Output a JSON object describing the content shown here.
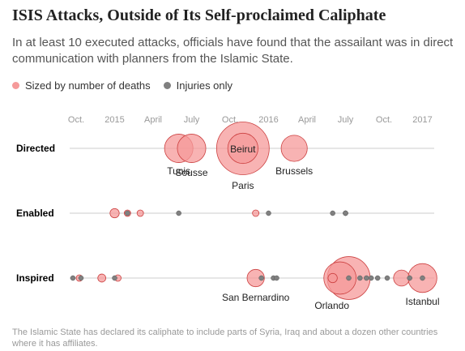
{
  "title": "ISIS Attacks, Outside of Its Self-proclaimed Caliphate",
  "subtitle": "In at least 10 executed attacks, officials have found that the assailant was in direct communication with planners from the Islamic State.",
  "legend": {
    "deaths_label": "Sized by number of deaths",
    "injuries_label": "Injuries only"
  },
  "source": "The Islamic State has declared its caliphate to include parts of Syria, Iraq and about a dozen other countries where it has affiliates.",
  "colors": {
    "deaths_fill": "#f59a9a",
    "deaths_inner": "#f06060",
    "injuries": "#808080",
    "axis_line": "#cccccc"
  },
  "chart_data": {
    "type": "scatter",
    "x_axis": {
      "type": "time",
      "ticks": [
        {
          "date": "2014-10",
          "label": "Oct."
        },
        {
          "date": "2015-01",
          "label": "2015"
        },
        {
          "date": "2015-04",
          "label": "April"
        },
        {
          "date": "2015-07",
          "label": "July"
        },
        {
          "date": "2015-10",
          "label": "Oct."
        },
        {
          "date": "2016-01",
          "label": "2016"
        },
        {
          "date": "2016-04",
          "label": "April"
        },
        {
          "date": "2016-07",
          "label": "July"
        },
        {
          "date": "2016-10",
          "label": "Oct."
        },
        {
          "date": "2017-01",
          "label": "2017"
        }
      ]
    },
    "rows": [
      {
        "name": "Directed",
        "points": [
          {
            "date": "2015-06",
            "kind": "deaths",
            "deaths": 38,
            "label": "Tunis"
          },
          {
            "date": "2015-07",
            "kind": "deaths",
            "deaths": 38,
            "label": "Sousse"
          },
          {
            "date": "2015-11",
            "kind": "deaths",
            "deaths": 130,
            "label": "Paris"
          },
          {
            "date": "2015-11",
            "kind": "deaths",
            "deaths": 43,
            "label": "Beirut"
          },
          {
            "date": "2016-03",
            "kind": "deaths",
            "deaths": 32,
            "label": "Brussels"
          }
        ]
      },
      {
        "name": "Enabled",
        "points": [
          {
            "date": "2015-01",
            "kind": "deaths",
            "deaths": 4
          },
          {
            "date": "2015-02",
            "kind": "deaths",
            "deaths": 1
          },
          {
            "date": "2015-02",
            "kind": "injuries"
          },
          {
            "date": "2015-03",
            "kind": "deaths",
            "deaths": 1
          },
          {
            "date": "2015-06",
            "kind": "injuries"
          },
          {
            "date": "2015-12",
            "kind": "deaths",
            "deaths": 2
          },
          {
            "date": "2016-01",
            "kind": "injuries"
          },
          {
            "date": "2016-06",
            "kind": "injuries"
          },
          {
            "date": "2016-07",
            "kind": "injuries"
          },
          {
            "date": "2016-07",
            "kind": "injuries"
          },
          {
            "date": "2016-07",
            "kind": "injuries"
          }
        ]
      },
      {
        "name": "Inspired",
        "points": [
          {
            "date": "2014-10",
            "kind": "injuries"
          },
          {
            "date": "2014-10",
            "kind": "deaths",
            "deaths": 1
          },
          {
            "date": "2014-10",
            "kind": "injuries"
          },
          {
            "date": "2014-12",
            "kind": "deaths",
            "deaths": 3
          },
          {
            "date": "2015-01",
            "kind": "injuries"
          },
          {
            "date": "2015-01",
            "kind": "deaths",
            "deaths": 2
          },
          {
            "date": "2015-12",
            "kind": "deaths",
            "deaths": 14,
            "label": "San Bernardino"
          },
          {
            "date": "2015-12",
            "kind": "injuries"
          },
          {
            "date": "2016-01",
            "kind": "injuries"
          },
          {
            "date": "2016-01",
            "kind": "injuries"
          },
          {
            "date": "2016-06",
            "kind": "deaths",
            "deaths": 49,
            "label": "Orlando"
          },
          {
            "date": "2016-06",
            "kind": "deaths",
            "deaths": 4
          },
          {
            "date": "2016-07",
            "kind": "deaths",
            "deaths": 86
          },
          {
            "date": "2016-07",
            "kind": "injuries"
          },
          {
            "date": "2016-08",
            "kind": "injuries"
          },
          {
            "date": "2016-08",
            "kind": "injuries"
          },
          {
            "date": "2016-09",
            "kind": "injuries"
          },
          {
            "date": "2016-09",
            "kind": "injuries"
          },
          {
            "date": "2016-10",
            "kind": "injuries"
          },
          {
            "date": "2016-12",
            "kind": "injuries"
          },
          {
            "date": "2017-01",
            "kind": "deaths",
            "deaths": 39,
            "label": "Istanbul"
          },
          {
            "date": "2016-12",
            "kind": "deaths",
            "deaths": 12
          },
          {
            "date": "2017-01",
            "kind": "injuries"
          }
        ]
      }
    ]
  }
}
